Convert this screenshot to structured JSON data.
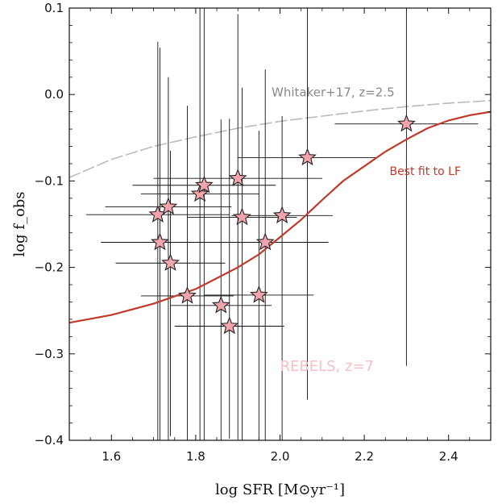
{
  "chart_data": {
    "type": "scatter",
    "title": "",
    "xlabel": "log SFR [M⊙yr⁻¹]",
    "ylabel": "log f_obs",
    "xlim": [
      1.5,
      2.5
    ],
    "ylim": [
      -0.4,
      0.1
    ],
    "x_ticks": [
      1.6,
      1.8,
      2.0,
      2.2,
      2.4
    ],
    "x_tick_labels": [
      "1.6",
      "1.8",
      "2.0",
      "2.2",
      "2.4"
    ],
    "y_ticks": [
      0.1,
      0.0,
      -0.1,
      -0.2,
      -0.3,
      -0.4
    ],
    "y_tick_labels": [
      "0.1",
      "0.0",
      "−0.1",
      "−0.2",
      "−0.3",
      "−0.4"
    ],
    "grid": false,
    "colors": {
      "stars_fill": "#f4a4ad",
      "stars_edge": "#222222",
      "errorbar": "#111111",
      "fit_line": "#c0392b",
      "whitaker_line": "#bbbbbb",
      "whitaker_text": "#888888",
      "fit_text": "#c0392b",
      "rebels_text": "#f7c0c5"
    },
    "series": [
      {
        "name": "REBELS, z=7",
        "kind": "points",
        "points": [
          {
            "x": 1.71,
            "y": -0.139,
            "xerr": 0.17,
            "yerr_low": 0.27,
            "yerr_high": 0.2
          },
          {
            "x": 1.735,
            "y": -0.13,
            "xerr": 0.15,
            "yerr_low": 0.27,
            "yerr_high": 0.15
          },
          {
            "x": 1.715,
            "y": -0.171,
            "xerr": 0.14,
            "yerr_low": 0.23,
            "yerr_high": 0.225
          },
          {
            "x": 1.74,
            "y": -0.195,
            "xerr": 0.13,
            "yerr_low": 0.2,
            "yerr_high": 0.13
          },
          {
            "x": 1.78,
            "y": -0.233,
            "xerr": 0.11,
            "yerr_low": 0.17,
            "yerr_high": 0.22
          },
          {
            "x": 1.81,
            "y": -0.115,
            "xerr": 0.14,
            "yerr_low": 0.285,
            "yerr_high": 0.23
          },
          {
            "x": 1.82,
            "y": -0.105,
            "xerr": 0.17,
            "yerr_low": 0.295,
            "yerr_high": 0.205
          },
          {
            "x": 1.86,
            "y": -0.244,
            "xerr": 0.12,
            "yerr_low": 0.16,
            "yerr_high": 0.215
          },
          {
            "x": 1.88,
            "y": -0.268,
            "xerr": 0.13,
            "yerr_low": 0.13,
            "yerr_high": 0.24
          },
          {
            "x": 1.9,
            "y": -0.097,
            "xerr": 0.2,
            "yerr_low": 0.3,
            "yerr_high": 0.19
          },
          {
            "x": 1.91,
            "y": -0.142,
            "xerr": 0.13,
            "yerr_low": 0.26,
            "yerr_high": 0.15
          },
          {
            "x": 1.95,
            "y": -0.232,
            "xerr": 0.13,
            "yerr_low": 0.17,
            "yerr_high": 0.19
          },
          {
            "x": 1.965,
            "y": -0.171,
            "xerr": 0.15,
            "yerr_low": 0.23,
            "yerr_high": 0.2
          },
          {
            "x": 2.005,
            "y": -0.14,
            "xerr": 0.12,
            "yerr_low": 0.26,
            "yerr_high": 0.115
          },
          {
            "x": 2.065,
            "y": -0.073,
            "xerr": 0.165,
            "yerr_low": 0.28,
            "yerr_high": 0.173
          },
          {
            "x": 2.3,
            "y": -0.034,
            "xerr": 0.17,
            "yerr_low": 0.28,
            "yerr_high": 0.134
          }
        ]
      },
      {
        "name": "Best fit to LF",
        "kind": "line",
        "style": "solid",
        "x": [
          1.5,
          1.6,
          1.7,
          1.8,
          1.9,
          1.95,
          2.0,
          2.05,
          2.1,
          2.15,
          2.2,
          2.25,
          2.3,
          2.35,
          2.4,
          2.45,
          2.5
        ],
        "y": [
          -0.264,
          -0.255,
          -0.242,
          -0.225,
          -0.2,
          -0.185,
          -0.165,
          -0.145,
          -0.122,
          -0.1,
          -0.083,
          -0.066,
          -0.052,
          -0.039,
          -0.03,
          -0.024,
          -0.02
        ]
      },
      {
        "name": "Whitaker+17, z=2.5",
        "kind": "line",
        "style": "dashed",
        "x": [
          1.5,
          1.6,
          1.7,
          1.8,
          1.9,
          2.0,
          2.1,
          2.2,
          2.3,
          2.4,
          2.5
        ],
        "y": [
          -0.096,
          -0.075,
          -0.06,
          -0.049,
          -0.039,
          -0.031,
          -0.025,
          -0.019,
          -0.014,
          -0.01,
          -0.007
        ]
      }
    ],
    "annotations": [
      {
        "text": "Whitaker+17, z=2.5",
        "x": 1.98,
        "y": -0.002
      },
      {
        "text": "Best fit to LF",
        "x": 2.26,
        "y": -0.093
      },
      {
        "text": "REBELS, z=7",
        "x": 2.0,
        "y": -0.32
      }
    ]
  }
}
